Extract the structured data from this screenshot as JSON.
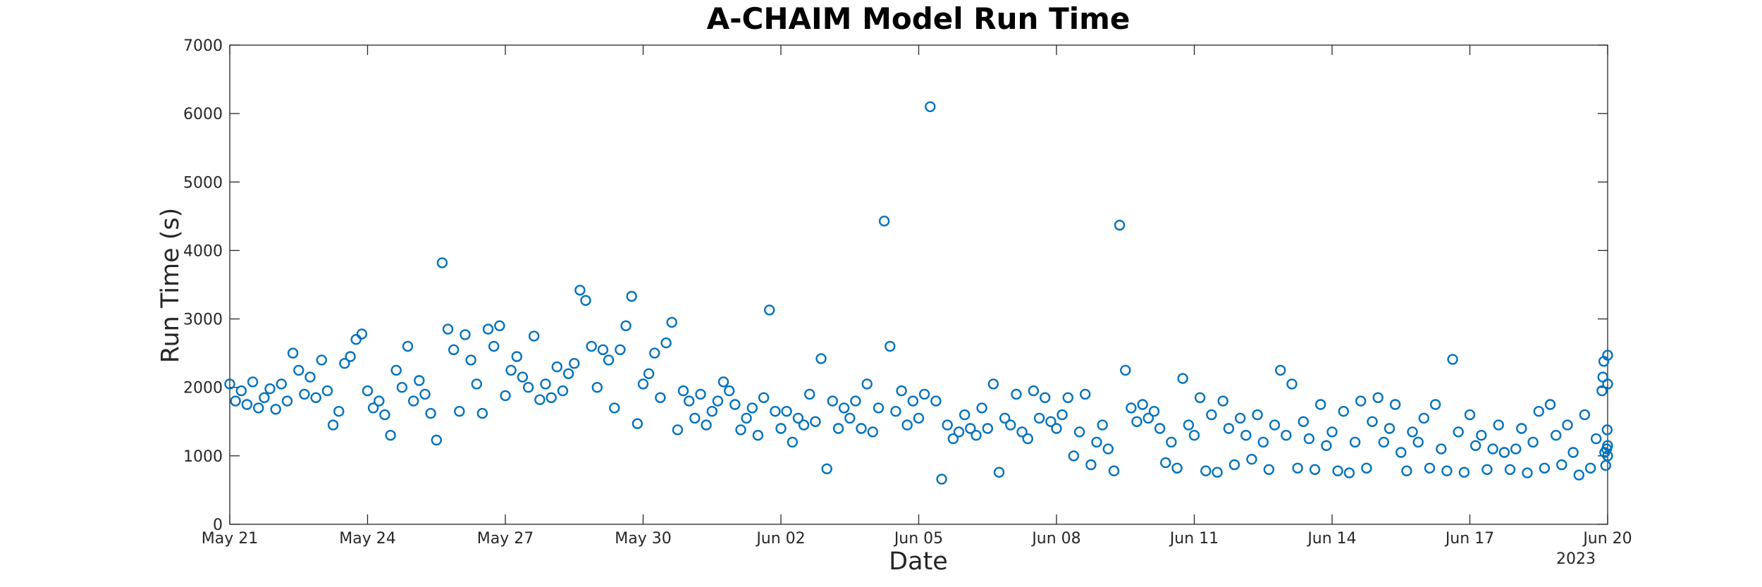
{
  "chart_data": {
    "type": "scatter",
    "title": "A-CHAIM Model Run Time",
    "xlabel": "Date",
    "ylabel": "Run Time (s)",
    "x_axis_kind": "date",
    "xlim": [
      "2023-05-21",
      "2023-06-20"
    ],
    "x_ticks": [
      {
        "date": "2023-05-21",
        "label": "May 21"
      },
      {
        "date": "2023-05-24",
        "label": "May 24"
      },
      {
        "date": "2023-05-27",
        "label": "May 27"
      },
      {
        "date": "2023-05-30",
        "label": "May 30"
      },
      {
        "date": "2023-06-02",
        "label": "Jun 02"
      },
      {
        "date": "2023-06-05",
        "label": "Jun 05"
      },
      {
        "date": "2023-06-08",
        "label": "Jun 08"
      },
      {
        "date": "2023-06-11",
        "label": "Jun 11"
      },
      {
        "date": "2023-06-14",
        "label": "Jun 14"
      },
      {
        "date": "2023-06-17",
        "label": "Jun 17"
      },
      {
        "date": "2023-06-20",
        "label": "Jun 20"
      }
    ],
    "x_secondary_label": "2023",
    "ylim": [
      0,
      7000
    ],
    "y_ticks": [
      0,
      1000,
      2000,
      3000,
      4000,
      5000,
      6000,
      7000
    ],
    "grid": false,
    "legend": "none",
    "marker": "open-circle",
    "color": "#0072BD",
    "series": [
      {
        "points": [
          [
            "2023-05-21 00:00",
            2050
          ],
          [
            "2023-05-21 03:00",
            1800
          ],
          [
            "2023-05-21 06:00",
            1950
          ],
          [
            "2023-05-21 09:00",
            1750
          ],
          [
            "2023-05-21 12:00",
            2080
          ],
          [
            "2023-05-21 15:00",
            1700
          ],
          [
            "2023-05-21 18:00",
            1850
          ],
          [
            "2023-05-21 21:00",
            1980
          ],
          [
            "2023-05-22 00:00",
            1680
          ],
          [
            "2023-05-22 03:00",
            2050
          ],
          [
            "2023-05-22 06:00",
            1800
          ],
          [
            "2023-05-22 09:00",
            2500
          ],
          [
            "2023-05-22 12:00",
            2250
          ],
          [
            "2023-05-22 15:00",
            1900
          ],
          [
            "2023-05-22 18:00",
            2150
          ],
          [
            "2023-05-22 21:00",
            1850
          ],
          [
            "2023-05-23 00:00",
            2400
          ],
          [
            "2023-05-23 03:00",
            1950
          ],
          [
            "2023-05-23 06:00",
            1450
          ],
          [
            "2023-05-23 09:00",
            1650
          ],
          [
            "2023-05-23 12:00",
            2350
          ],
          [
            "2023-05-23 15:00",
            2450
          ],
          [
            "2023-05-23 18:00",
            2700
          ],
          [
            "2023-05-23 21:00",
            2780
          ],
          [
            "2023-05-24 00:00",
            1950
          ],
          [
            "2023-05-24 03:00",
            1700
          ],
          [
            "2023-05-24 06:00",
            1800
          ],
          [
            "2023-05-24 09:00",
            1600
          ],
          [
            "2023-05-24 12:00",
            1300
          ],
          [
            "2023-05-24 15:00",
            2250
          ],
          [
            "2023-05-24 18:00",
            2000
          ],
          [
            "2023-05-24 21:00",
            2600
          ],
          [
            "2023-05-25 00:00",
            1800
          ],
          [
            "2023-05-25 03:00",
            2100
          ],
          [
            "2023-05-25 06:00",
            1900
          ],
          [
            "2023-05-25 09:00",
            1620
          ],
          [
            "2023-05-25 12:00",
            1230
          ],
          [
            "2023-05-25 15:00",
            3820
          ],
          [
            "2023-05-25 18:00",
            2850
          ],
          [
            "2023-05-25 21:00",
            2550
          ],
          [
            "2023-05-26 00:00",
            1650
          ],
          [
            "2023-05-26 03:00",
            2770
          ],
          [
            "2023-05-26 06:00",
            2400
          ],
          [
            "2023-05-26 09:00",
            2050
          ],
          [
            "2023-05-26 12:00",
            1620
          ],
          [
            "2023-05-26 15:00",
            2850
          ],
          [
            "2023-05-26 18:00",
            2600
          ],
          [
            "2023-05-26 21:00",
            2900
          ],
          [
            "2023-05-27 00:00",
            1880
          ],
          [
            "2023-05-27 03:00",
            2250
          ],
          [
            "2023-05-27 06:00",
            2450
          ],
          [
            "2023-05-27 09:00",
            2150
          ],
          [
            "2023-05-27 12:00",
            2000
          ],
          [
            "2023-05-27 15:00",
            2750
          ],
          [
            "2023-05-27 18:00",
            1820
          ],
          [
            "2023-05-27 21:00",
            2050
          ],
          [
            "2023-05-28 00:00",
            1850
          ],
          [
            "2023-05-28 03:00",
            2300
          ],
          [
            "2023-05-28 06:00",
            1950
          ],
          [
            "2023-05-28 09:00",
            2200
          ],
          [
            "2023-05-28 12:00",
            2350
          ],
          [
            "2023-05-28 15:00",
            3420
          ],
          [
            "2023-05-28 18:00",
            3270
          ],
          [
            "2023-05-28 21:00",
            2600
          ],
          [
            "2023-05-29 00:00",
            2000
          ],
          [
            "2023-05-29 03:00",
            2550
          ],
          [
            "2023-05-29 06:00",
            2400
          ],
          [
            "2023-05-29 09:00",
            1700
          ],
          [
            "2023-05-29 12:00",
            2550
          ],
          [
            "2023-05-29 15:00",
            2900
          ],
          [
            "2023-05-29 18:00",
            3330
          ],
          [
            "2023-05-29 21:00",
            1470
          ],
          [
            "2023-05-30 00:00",
            2050
          ],
          [
            "2023-05-30 03:00",
            2200
          ],
          [
            "2023-05-30 06:00",
            2500
          ],
          [
            "2023-05-30 09:00",
            1850
          ],
          [
            "2023-05-30 12:00",
            2650
          ],
          [
            "2023-05-30 15:00",
            2950
          ],
          [
            "2023-05-30 18:00",
            1380
          ],
          [
            "2023-05-30 21:00",
            1950
          ],
          [
            "2023-05-31 00:00",
            1800
          ],
          [
            "2023-05-31 03:00",
            1550
          ],
          [
            "2023-05-31 06:00",
            1900
          ],
          [
            "2023-05-31 09:00",
            1450
          ],
          [
            "2023-05-31 12:00",
            1650
          ],
          [
            "2023-05-31 15:00",
            1800
          ],
          [
            "2023-05-31 18:00",
            2080
          ],
          [
            "2023-05-31 21:00",
            1950
          ],
          [
            "2023-06-01 00:00",
            1750
          ],
          [
            "2023-06-01 03:00",
            1380
          ],
          [
            "2023-06-01 06:00",
            1550
          ],
          [
            "2023-06-01 09:00",
            1700
          ],
          [
            "2023-06-01 12:00",
            1300
          ],
          [
            "2023-06-01 15:00",
            1850
          ],
          [
            "2023-06-01 18:00",
            3130
          ],
          [
            "2023-06-01 21:00",
            1650
          ],
          [
            "2023-06-02 00:00",
            1400
          ],
          [
            "2023-06-02 03:00",
            1650
          ],
          [
            "2023-06-02 06:00",
            1200
          ],
          [
            "2023-06-02 09:00",
            1550
          ],
          [
            "2023-06-02 12:00",
            1450
          ],
          [
            "2023-06-02 15:00",
            1900
          ],
          [
            "2023-06-02 18:00",
            1500
          ],
          [
            "2023-06-02 21:00",
            2420
          ],
          [
            "2023-06-03 00:00",
            810
          ],
          [
            "2023-06-03 03:00",
            1800
          ],
          [
            "2023-06-03 06:00",
            1400
          ],
          [
            "2023-06-03 09:00",
            1700
          ],
          [
            "2023-06-03 12:00",
            1550
          ],
          [
            "2023-06-03 15:00",
            1800
          ],
          [
            "2023-06-03 18:00",
            1400
          ],
          [
            "2023-06-03 21:00",
            2050
          ],
          [
            "2023-06-04 00:00",
            1350
          ],
          [
            "2023-06-04 03:00",
            1700
          ],
          [
            "2023-06-04 06:00",
            4430
          ],
          [
            "2023-06-04 09:00",
            2600
          ],
          [
            "2023-06-04 12:00",
            1650
          ],
          [
            "2023-06-04 15:00",
            1950
          ],
          [
            "2023-06-04 18:00",
            1450
          ],
          [
            "2023-06-04 21:00",
            1800
          ],
          [
            "2023-06-05 00:00",
            1550
          ],
          [
            "2023-06-05 03:00",
            1900
          ],
          [
            "2023-06-05 06:00",
            6100
          ],
          [
            "2023-06-05 09:00",
            1800
          ],
          [
            "2023-06-05 12:00",
            660
          ],
          [
            "2023-06-05 15:00",
            1450
          ],
          [
            "2023-06-05 18:00",
            1250
          ],
          [
            "2023-06-05 21:00",
            1350
          ],
          [
            "2023-06-06 00:00",
            1600
          ],
          [
            "2023-06-06 03:00",
            1400
          ],
          [
            "2023-06-06 06:00",
            1300
          ],
          [
            "2023-06-06 09:00",
            1700
          ],
          [
            "2023-06-06 12:00",
            1400
          ],
          [
            "2023-06-06 15:00",
            2050
          ],
          [
            "2023-06-06 18:00",
            760
          ],
          [
            "2023-06-06 21:00",
            1550
          ],
          [
            "2023-06-07 00:00",
            1450
          ],
          [
            "2023-06-07 03:00",
            1900
          ],
          [
            "2023-06-07 06:00",
            1350
          ],
          [
            "2023-06-07 09:00",
            1250
          ],
          [
            "2023-06-07 12:00",
            1950
          ],
          [
            "2023-06-07 15:00",
            1550
          ],
          [
            "2023-06-07 18:00",
            1850
          ],
          [
            "2023-06-07 21:00",
            1500
          ],
          [
            "2023-06-08 00:00",
            1400
          ],
          [
            "2023-06-08 03:00",
            1600
          ],
          [
            "2023-06-08 06:00",
            1850
          ],
          [
            "2023-06-08 09:00",
            1000
          ],
          [
            "2023-06-08 12:00",
            1350
          ],
          [
            "2023-06-08 15:00",
            1900
          ],
          [
            "2023-06-08 18:00",
            870
          ],
          [
            "2023-06-08 21:00",
            1200
          ],
          [
            "2023-06-09 00:00",
            1450
          ],
          [
            "2023-06-09 03:00",
            1100
          ],
          [
            "2023-06-09 06:00",
            780
          ],
          [
            "2023-06-09 09:00",
            4370
          ],
          [
            "2023-06-09 12:00",
            2250
          ],
          [
            "2023-06-09 15:00",
            1700
          ],
          [
            "2023-06-09 18:00",
            1500
          ],
          [
            "2023-06-09 21:00",
            1750
          ],
          [
            "2023-06-10 00:00",
            1550
          ],
          [
            "2023-06-10 03:00",
            1650
          ],
          [
            "2023-06-10 06:00",
            1400
          ],
          [
            "2023-06-10 09:00",
            900
          ],
          [
            "2023-06-10 12:00",
            1200
          ],
          [
            "2023-06-10 15:00",
            820
          ],
          [
            "2023-06-10 18:00",
            2130
          ],
          [
            "2023-06-10 21:00",
            1450
          ],
          [
            "2023-06-11 00:00",
            1300
          ],
          [
            "2023-06-11 03:00",
            1850
          ],
          [
            "2023-06-11 06:00",
            780
          ],
          [
            "2023-06-11 09:00",
            1600
          ],
          [
            "2023-06-11 12:00",
            760
          ],
          [
            "2023-06-11 15:00",
            1800
          ],
          [
            "2023-06-11 18:00",
            1400
          ],
          [
            "2023-06-11 21:00",
            870
          ],
          [
            "2023-06-12 00:00",
            1550
          ],
          [
            "2023-06-12 03:00",
            1300
          ],
          [
            "2023-06-12 06:00",
            950
          ],
          [
            "2023-06-12 09:00",
            1600
          ],
          [
            "2023-06-12 12:00",
            1200
          ],
          [
            "2023-06-12 15:00",
            800
          ],
          [
            "2023-06-12 18:00",
            1450
          ],
          [
            "2023-06-12 21:00",
            2250
          ],
          [
            "2023-06-13 00:00",
            1300
          ],
          [
            "2023-06-13 03:00",
            2050
          ],
          [
            "2023-06-13 06:00",
            820
          ],
          [
            "2023-06-13 09:00",
            1500
          ],
          [
            "2023-06-13 12:00",
            1250
          ],
          [
            "2023-06-13 15:00",
            800
          ],
          [
            "2023-06-13 18:00",
            1750
          ],
          [
            "2023-06-13 21:00",
            1150
          ],
          [
            "2023-06-14 00:00",
            1350
          ],
          [
            "2023-06-14 03:00",
            780
          ],
          [
            "2023-06-14 06:00",
            1650
          ],
          [
            "2023-06-14 09:00",
            750
          ],
          [
            "2023-06-14 12:00",
            1200
          ],
          [
            "2023-06-14 15:00",
            1800
          ],
          [
            "2023-06-14 18:00",
            820
          ],
          [
            "2023-06-14 21:00",
            1500
          ],
          [
            "2023-06-15 00:00",
            1850
          ],
          [
            "2023-06-15 03:00",
            1200
          ],
          [
            "2023-06-15 06:00",
            1400
          ],
          [
            "2023-06-15 09:00",
            1750
          ],
          [
            "2023-06-15 12:00",
            1050
          ],
          [
            "2023-06-15 15:00",
            780
          ],
          [
            "2023-06-15 18:00",
            1350
          ],
          [
            "2023-06-15 21:00",
            1200
          ],
          [
            "2023-06-16 00:00",
            1550
          ],
          [
            "2023-06-16 03:00",
            820
          ],
          [
            "2023-06-16 06:00",
            1750
          ],
          [
            "2023-06-16 09:00",
            1100
          ],
          [
            "2023-06-16 12:00",
            780
          ],
          [
            "2023-06-16 15:00",
            2410
          ],
          [
            "2023-06-16 18:00",
            1350
          ],
          [
            "2023-06-16 21:00",
            760
          ],
          [
            "2023-06-17 00:00",
            1600
          ],
          [
            "2023-06-17 03:00",
            1150
          ],
          [
            "2023-06-17 06:00",
            1300
          ],
          [
            "2023-06-17 09:00",
            800
          ],
          [
            "2023-06-17 12:00",
            1100
          ],
          [
            "2023-06-17 15:00",
            1450
          ],
          [
            "2023-06-17 18:00",
            1050
          ],
          [
            "2023-06-17 21:00",
            800
          ],
          [
            "2023-06-18 00:00",
            1100
          ],
          [
            "2023-06-18 03:00",
            1400
          ],
          [
            "2023-06-18 06:00",
            750
          ],
          [
            "2023-06-18 09:00",
            1200
          ],
          [
            "2023-06-18 12:00",
            1650
          ],
          [
            "2023-06-18 15:00",
            820
          ],
          [
            "2023-06-18 18:00",
            1750
          ],
          [
            "2023-06-18 21:00",
            1300
          ],
          [
            "2023-06-19 00:00",
            870
          ],
          [
            "2023-06-19 03:00",
            1450
          ],
          [
            "2023-06-19 06:00",
            1050
          ],
          [
            "2023-06-19 09:00",
            720
          ],
          [
            "2023-06-19 12:00",
            1600
          ],
          [
            "2023-06-19 15:00",
            820
          ],
          [
            "2023-06-19 18:00",
            1250
          ],
          [
            "2023-06-19 21:00",
            1950
          ],
          [
            "2023-06-19 22:30",
            1050
          ],
          [
            "2023-06-19 23:00",
            860
          ],
          [
            "2023-06-19 23:30",
            1100
          ],
          [
            "2023-06-19 23:45",
            1380
          ],
          [
            "2023-06-20 00:00",
            2050
          ],
          [
            "2023-06-20 00:00",
            2470
          ],
          [
            "2023-06-20 00:00",
            1000
          ],
          [
            "2023-06-20 00:00",
            1150
          ],
          [
            "2023-06-19 22:00",
            2380
          ],
          [
            "2023-06-19 21:30",
            2150
          ]
        ]
      }
    ]
  }
}
